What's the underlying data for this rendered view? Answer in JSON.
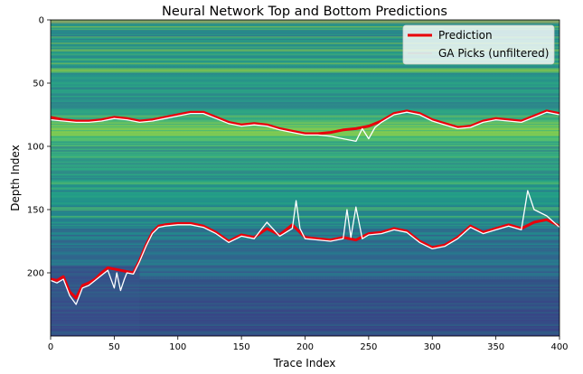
{
  "chart_data": {
    "type": "heatmap",
    "title": "Neural Network Top and Bottom Predictions",
    "xlabel": "Trace Index",
    "ylabel": "Depth Index",
    "xlim": [
      0,
      400
    ],
    "ylim": [
      0,
      250
    ],
    "y_inverted": true,
    "x_ticks": [
      0,
      50,
      100,
      150,
      200,
      250,
      300,
      350,
      400
    ],
    "y_ticks": [
      0,
      50,
      100,
      150,
      200
    ],
    "colormap": "viridis",
    "grid": false,
    "legend": {
      "placement": "top-right",
      "entries": [
        {
          "label": "Prediction",
          "color": "#e8000b"
        },
        {
          "label": "GA Picks (unfiltered)",
          "color": "#ffffff"
        }
      ]
    },
    "series": [
      {
        "name": "Prediction",
        "role": "top",
        "x": [
          0,
          10,
          20,
          30,
          40,
          50,
          60,
          70,
          80,
          90,
          100,
          110,
          120,
          130,
          140,
          150,
          160,
          170,
          180,
          190,
          200,
          210,
          220,
          230,
          240,
          250,
          260,
          270,
          280,
          290,
          300,
          310,
          320,
          330,
          340,
          350,
          360,
          370,
          380,
          390,
          400
        ],
        "y": [
          77,
          79,
          80,
          80,
          79,
          77,
          78,
          80,
          79,
          77,
          75,
          73,
          73,
          77,
          81,
          83,
          82,
          83,
          86,
          88,
          90,
          90,
          89,
          87,
          86,
          84,
          80,
          74,
          72,
          74,
          79,
          82,
          85,
          84,
          80,
          78,
          79,
          80,
          76,
          72,
          74
        ]
      },
      {
        "name": "GA Picks (unfiltered)",
        "role": "top",
        "x": [
          0,
          10,
          20,
          30,
          40,
          50,
          60,
          70,
          80,
          90,
          100,
          110,
          120,
          130,
          140,
          150,
          160,
          170,
          180,
          190,
          200,
          210,
          220,
          230,
          240,
          245,
          250,
          255,
          260,
          270,
          280,
          290,
          300,
          310,
          320,
          330,
          340,
          350,
          360,
          370,
          380,
          390,
          400
        ],
        "y": [
          79,
          80,
          81,
          81,
          80,
          78,
          79,
          81,
          80,
          78,
          76,
          74,
          74,
          78,
          82,
          84,
          83,
          84,
          87,
          89,
          91,
          91,
          92,
          94,
          96,
          86,
          94,
          85,
          81,
          75,
          73,
          75,
          80,
          83,
          86,
          85,
          81,
          79,
          80,
          81,
          77,
          73,
          75
        ]
      },
      {
        "name": "Prediction",
        "role": "bottom",
        "x": [
          0,
          5,
          10,
          15,
          20,
          25,
          30,
          35,
          40,
          45,
          50,
          55,
          60,
          65,
          70,
          75,
          80,
          85,
          90,
          100,
          110,
          120,
          130,
          140,
          150,
          160,
          170,
          180,
          190,
          200,
          210,
          220,
          230,
          240,
          250,
          260,
          270,
          280,
          290,
          300,
          310,
          320,
          330,
          340,
          350,
          360,
          370,
          380,
          390,
          400
        ],
        "y": [
          205,
          206,
          203,
          215,
          220,
          210,
          208,
          205,
          200,
          196,
          197,
          198,
          199,
          200,
          190,
          178,
          168,
          163,
          162,
          161,
          161,
          163,
          168,
          175,
          170,
          172,
          165,
          170,
          162,
          172,
          173,
          174,
          172,
          174,
          169,
          168,
          165,
          167,
          175,
          180,
          178,
          172,
          163,
          168,
          165,
          162,
          165,
          160,
          158,
          163
        ]
      },
      {
        "name": "GA Picks (unfiltered)",
        "role": "bottom",
        "x": [
          0,
          5,
          10,
          15,
          20,
          25,
          30,
          35,
          40,
          45,
          50,
          52,
          55,
          58,
          60,
          65,
          70,
          75,
          80,
          85,
          90,
          100,
          110,
          120,
          130,
          140,
          150,
          160,
          170,
          180,
          190,
          193,
          196,
          200,
          210,
          220,
          230,
          233,
          236,
          240,
          245,
          250,
          260,
          270,
          280,
          290,
          300,
          310,
          320,
          330,
          340,
          350,
          360,
          370,
          375,
          380,
          390,
          400
        ],
        "y": [
          206,
          208,
          205,
          218,
          225,
          212,
          210,
          206,
          202,
          198,
          212,
          200,
          214,
          205,
          200,
          201,
          191,
          179,
          169,
          164,
          163,
          162,
          162,
          164,
          169,
          176,
          171,
          173,
          160,
          171,
          165,
          143,
          165,
          173,
          174,
          175,
          173,
          150,
          172,
          148,
          173,
          170,
          169,
          166,
          168,
          176,
          181,
          179,
          173,
          164,
          169,
          166,
          163,
          166,
          135,
          150,
          155,
          164
        ]
      }
    ]
  }
}
